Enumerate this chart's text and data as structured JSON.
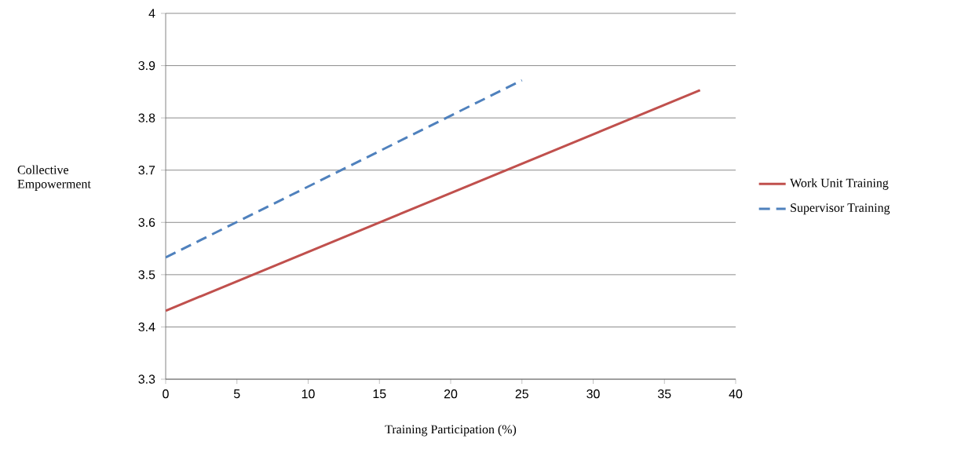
{
  "chart_data": {
    "type": "line",
    "xlabel": "Training Participation (%)",
    "ylabel": "Collective Empowerment",
    "xlim": [
      0,
      40
    ],
    "xticks": [
      0,
      5,
      10,
      15,
      20,
      25,
      30,
      35,
      40
    ],
    "ylim": [
      3.3,
      4
    ],
    "yticks": [
      3.3,
      3.4,
      3.5,
      3.6,
      3.7,
      3.8,
      3.9,
      4
    ],
    "grid": "y",
    "legend": "right",
    "marker": "none",
    "series": [
      {
        "name": "Work Unit Training",
        "color": "#c0504d",
        "line_style": "solid",
        "x": [
          0,
          37.5
        ],
        "values": [
          3.431,
          3.853
        ]
      },
      {
        "name": "Supervisor Training",
        "color": "#4f81bd",
        "line_style": "dashed",
        "x": [
          0,
          25
        ],
        "values": [
          3.533,
          3.872
        ]
      }
    ]
  }
}
